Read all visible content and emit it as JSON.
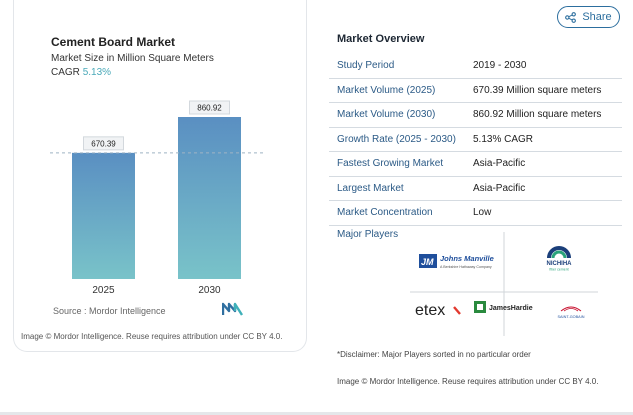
{
  "chart": {
    "title": "Cement Board Market",
    "subtitle": "Market Size in Million Square Meters",
    "cagr_label": "CAGR",
    "cagr_value": "5.13%",
    "source": "Source :  Mordor Intelligence",
    "attribution": "Image © Mordor Intelligence. Reuse requires attribution under CC BY 4.0."
  },
  "chart_data": {
    "type": "bar",
    "categories": [
      "2025",
      "2030"
    ],
    "values": [
      670.39,
      860.92
    ],
    "value_labels": [
      "670.39",
      "860.92"
    ],
    "title": "Cement Board Market",
    "ylabel": "Market Size in Million Square Meters",
    "ylim": [
      0,
      860.92
    ],
    "grid": false,
    "bar_color_top": "#5a8fc2",
    "bar_color_bottom": "#79c3c9"
  },
  "share": {
    "label": "Share"
  },
  "overview": {
    "title": "Market Overview",
    "rows": [
      {
        "key": "Study Period",
        "value": "2019 - 2030"
      },
      {
        "key": "Market Volume (2025)",
        "value": "670.39 Million square meters"
      },
      {
        "key": "Market Volume (2030)",
        "value": "860.92 Million square meters"
      },
      {
        "key": "Growth Rate (2025 - 2030)",
        "value": "5.13% CAGR"
      },
      {
        "key": "Fastest Growing Market",
        "value": "Asia-Pacific"
      },
      {
        "key": "Largest Market",
        "value": "Asia-Pacific"
      },
      {
        "key": "Market Concentration",
        "value": "Low"
      }
    ]
  },
  "players": {
    "title": "Major Players",
    "logos": [
      {
        "name": "Johns Manville",
        "tagline": "A Berkshire Hathaway Company"
      },
      {
        "name": "NICHIHA",
        "tagline": "fiber cement"
      },
      {
        "name": "etex"
      },
      {
        "name": "JamesHardie"
      },
      {
        "name": "SAINT-GOBAIN"
      }
    ],
    "jm_monogram": "JM"
  },
  "disclaimer": "*Disclaimer: Major Players sorted in no particular order",
  "attribution_right": "Image © Mordor Intelligence. Reuse requires attribution under CC BY 4.0."
}
